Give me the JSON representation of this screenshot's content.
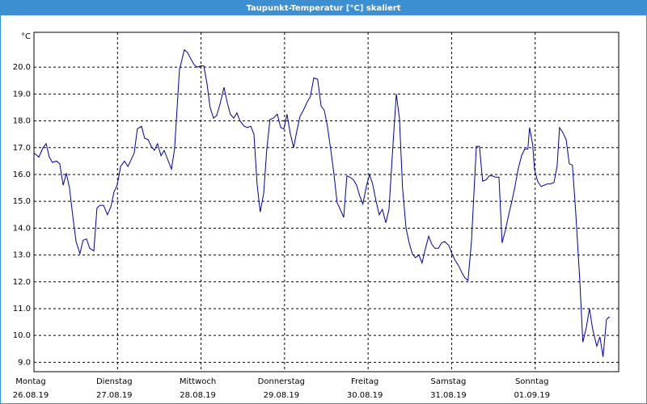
{
  "chart_data": {
    "type": "line",
    "title": "Taupunkt-Temperatur [°C] skaliert",
    "y_unit": "°C",
    "color": "#0000a0",
    "grid": true,
    "xlim": [
      0,
      168
    ],
    "ylim": [
      8.65,
      21.3
    ],
    "xticks": [
      {
        "value": 0,
        "label": "Montag"
      },
      {
        "value": 24,
        "label": "Dienstag"
      },
      {
        "value": 48,
        "label": "Mittwoch"
      },
      {
        "value": 72,
        "label": "Donnerstag"
      },
      {
        "value": 96,
        "label": "Freitag"
      },
      {
        "value": 120,
        "label": "Samstag"
      },
      {
        "value": 144,
        "label": "Sonntag"
      }
    ],
    "xtick_dates": [
      "26.08.19",
      "27.08.19",
      "28.08.19",
      "29.08.19",
      "30.08.19",
      "31.08.19",
      "01.09.19"
    ],
    "yticks": [
      {
        "value": 9,
        "label": "9.0"
      },
      {
        "value": 10,
        "label": "10.0"
      },
      {
        "value": 11,
        "label": "11.0"
      },
      {
        "value": 12,
        "label": "12.0"
      },
      {
        "value": 13,
        "label": "13.0"
      },
      {
        "value": 14,
        "label": "14.0"
      },
      {
        "value": 15,
        "label": "15.0"
      },
      {
        "value": 16,
        "label": "16.0"
      },
      {
        "value": 17,
        "label": "17.0"
      },
      {
        "value": 18,
        "label": "18.0"
      },
      {
        "value": 19,
        "label": "19.0"
      },
      {
        "value": 20,
        "label": "20.0"
      }
    ],
    "x": [
      0,
      1.4,
      2.6,
      3.5,
      4.4,
      5.3,
      6.5,
      7.4,
      8.4,
      9.3,
      10.2,
      11.2,
      12.1,
      13.2,
      14.1,
      15.1,
      16.0,
      17.2,
      18.1,
      19.0,
      20.0,
      21.1,
      22.1,
      23.0,
      23.9,
      24.9,
      26.0,
      27.0,
      27.9,
      28.8,
      29.7,
      30.9,
      31.8,
      32.8,
      33.7,
      34.6,
      35.5,
      36.5,
      37.4,
      38.6,
      39.5,
      40.4,
      41.8,
      43.2,
      44.1,
      45.1,
      46.0,
      46.9,
      47.9,
      48.8,
      49.7,
      50.6,
      51.6,
      52.5,
      53.4,
      54.6,
      55.5,
      56.4,
      57.4,
      58.3,
      59.2,
      60.4,
      61.3,
      62.3,
      63.2,
      64.1,
      65.0,
      66.0,
      66.9,
      67.8,
      68.8,
      69.9,
      70.9,
      71.8,
      72.7,
      73.6,
      74.6,
      75.5,
      76.4,
      77.6,
      78.5,
      79.4,
      80.4,
      81.5,
      82.5,
      83.4,
      84.3,
      85.3,
      86.2,
      87.1,
      88.0,
      89.0,
      89.9,
      90.8,
      91.8,
      92.7,
      93.6,
      94.5,
      95.5,
      96.4,
      97.3,
      98.3,
      99.2,
      100.1,
      101.1,
      102.0,
      102.9,
      104.1,
      105.0,
      105.9,
      106.9,
      107.8,
      108.7,
      109.6,
      110.6,
      111.5,
      112.4,
      113.4,
      114.3,
      115.2,
      116.2,
      117.1,
      118.0,
      119.2,
      120.1,
      121.0,
      122.0,
      122.9,
      123.8,
      124.7,
      125.7,
      127.1,
      128.0,
      128.9,
      129.9,
      130.8,
      131.7,
      132.6,
      133.6,
      134.5,
      135.4,
      136.4,
      137.3,
      138.2,
      139.1,
      140.1,
      141.0,
      141.9,
      142.4,
      143.3,
      143.8,
      144.7,
      145.7,
      146.6,
      147.5,
      148.4,
      149.4,
      150.3,
      151.0,
      152.0,
      152.9,
      153.8,
      154.7,
      155.6,
      156.8,
      157.7,
      158.7,
      159.6,
      160.5,
      161.7,
      162.6,
      163.5,
      164.5,
      165.4
    ],
    "values": [
      16.8,
      16.65,
      17.0,
      17.15,
      16.65,
      16.45,
      16.5,
      16.4,
      15.6,
      16.05,
      15.5,
      14.4,
      13.5,
      13.05,
      13.55,
      13.6,
      13.25,
      13.15,
      14.75,
      14.85,
      14.85,
      14.5,
      14.8,
      15.35,
      15.6,
      16.3,
      16.5,
      16.3,
      16.55,
      16.8,
      17.7,
      17.8,
      17.35,
      17.3,
      17.05,
      16.9,
      17.15,
      16.7,
      16.9,
      16.5,
      16.2,
      16.95,
      19.9,
      20.65,
      20.55,
      20.3,
      20.1,
      20.0,
      20.05,
      20.05,
      19.4,
      18.5,
      18.1,
      18.2,
      18.6,
      19.25,
      18.7,
      18.25,
      18.1,
      18.3,
      18.0,
      17.8,
      17.75,
      17.8,
      17.5,
      15.65,
      14.6,
      15.3,
      16.95,
      18.05,
      18.1,
      18.25,
      17.75,
      17.7,
      18.25,
      17.55,
      17.0,
      17.6,
      18.15,
      18.45,
      18.7,
      18.9,
      19.6,
      19.55,
      18.55,
      18.4,
      17.8,
      16.9,
      16.0,
      14.95,
      14.7,
      14.4,
      15.95,
      15.9,
      15.8,
      15.6,
      15.2,
      14.9,
      15.55,
      16.0,
      15.65,
      15.0,
      14.5,
      14.7,
      14.2,
      14.7,
      16.6,
      19.0,
      18.1,
      15.5,
      14.0,
      13.45,
      13.05,
      12.9,
      13.0,
      12.7,
      13.2,
      13.7,
      13.4,
      13.25,
      13.25,
      13.45,
      13.5,
      13.35,
      13.05,
      12.8,
      12.6,
      12.35,
      12.15,
      12.05,
      13.5,
      17.05,
      17.05,
      15.75,
      15.8,
      15.95,
      15.95,
      15.9,
      15.9,
      13.45,
      13.9,
      14.5,
      15.0,
      15.55,
      16.2,
      16.7,
      16.95,
      16.95,
      17.75,
      17.1,
      16.2,
      15.75,
      15.55,
      15.6,
      15.65,
      15.65,
      15.7,
      16.3,
      17.75,
      17.55,
      17.3,
      16.4,
      16.35,
      14.7,
      12.1,
      9.75,
      10.3,
      11.0,
      10.25,
      9.6,
      9.95,
      9.2,
      10.6,
      10.7
    ]
  }
}
